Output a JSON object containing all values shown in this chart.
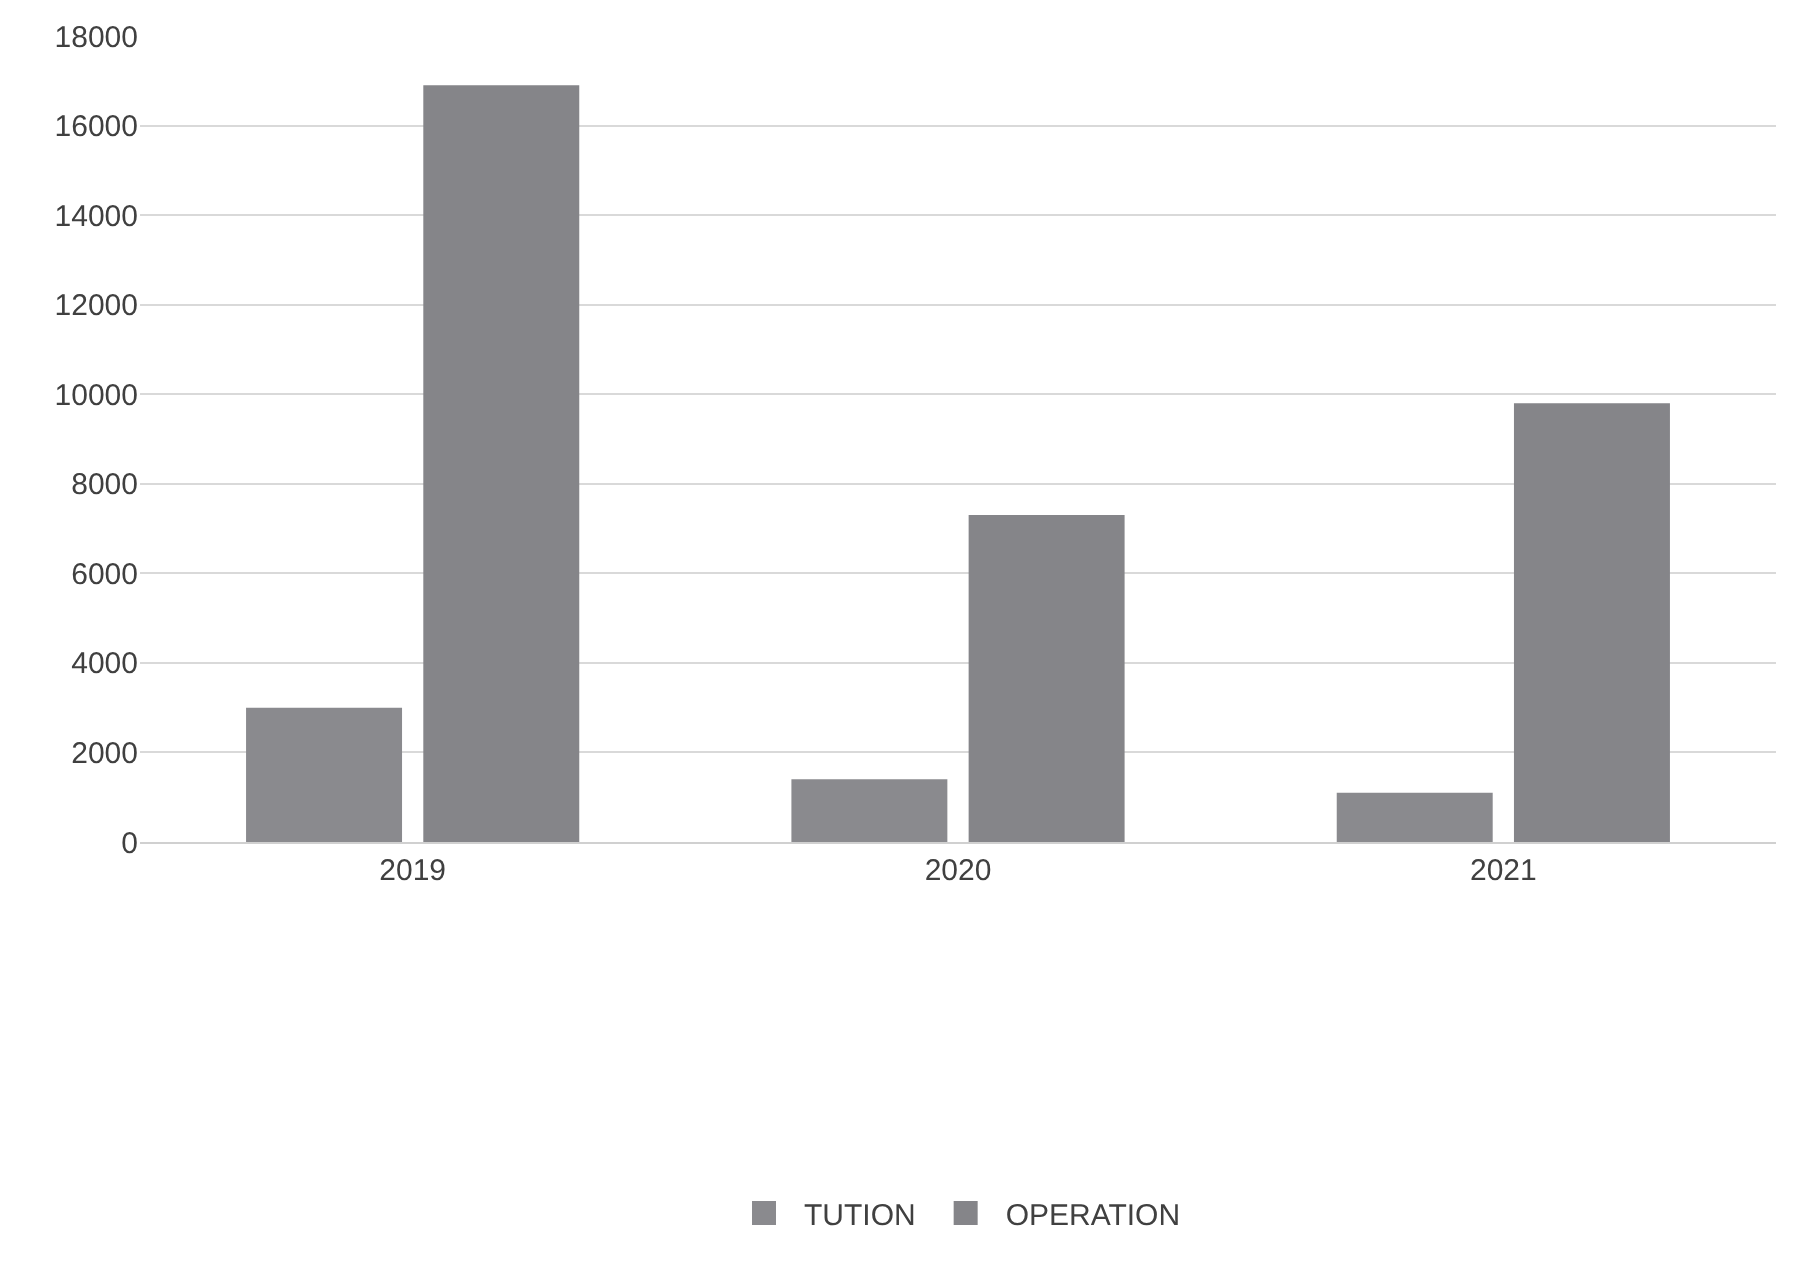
{
  "chart_data": {
    "type": "bar",
    "categories": [
      "2019",
      "2020",
      "2021"
    ],
    "series": [
      {
        "name": "TUTION",
        "color": "#8a8a8e",
        "values": [
          3000,
          1400,
          1100
        ]
      },
      {
        "name": "OPERATION",
        "color": "#858589",
        "values": [
          16900,
          7300,
          9800
        ]
      }
    ],
    "ylim": [
      0,
      18000
    ],
    "yticks": [
      0,
      2000,
      4000,
      6000,
      8000,
      10000,
      12000,
      14000,
      16000,
      18000
    ],
    "grid": "y",
    "legend": "bottom"
  }
}
